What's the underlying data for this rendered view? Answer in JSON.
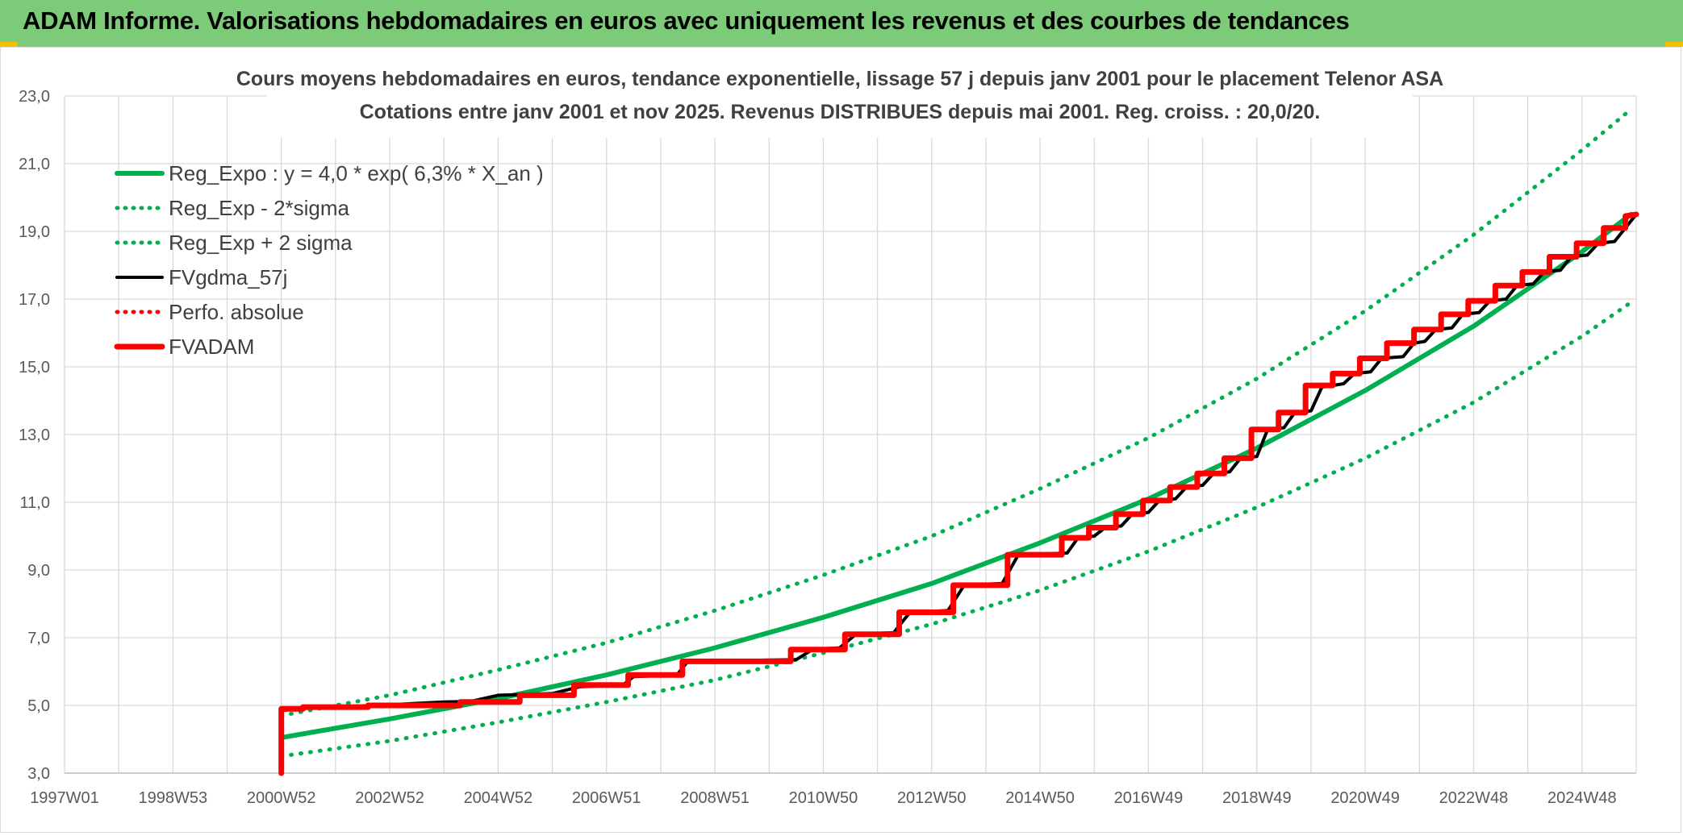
{
  "header": {
    "title": "ADAM Informe. Valorisations hebdomadaires en euros avec uniquement les revenus et des courbes de tendances",
    "background": "#7ccb78"
  },
  "chart_data": {
    "type": "line",
    "title": "Cours moyens hebdomadaires en euros, tendance exponentielle, lissage 57 j depuis janv 2001 pour le placement Telenor ASA",
    "subtitle": "Cotations entre janv 2001 et nov 2025. Revenus DISTRIBUES depuis mai 2001. Reg. croiss. : 20,0/20.",
    "xlabel": "",
    "ylabel": "",
    "xlim": [
      1997.0,
      2026.0
    ],
    "ylim": [
      3.0,
      23.0
    ],
    "grid": true,
    "legend_position": "top-left",
    "x_tick_labels": [
      {
        "x": 1997.0,
        "label": "1997W01"
      },
      {
        "x": 1999.0,
        "label": "1998W53"
      },
      {
        "x": 2001.0,
        "label": "2000W52"
      },
      {
        "x": 2003.0,
        "label": "2002W52"
      },
      {
        "x": 2005.0,
        "label": "2004W52"
      },
      {
        "x": 2007.0,
        "label": "2006W51"
      },
      {
        "x": 2009.0,
        "label": "2008W51"
      },
      {
        "x": 2011.0,
        "label": "2010W50"
      },
      {
        "x": 2013.0,
        "label": "2012W50"
      },
      {
        "x": 2015.0,
        "label": "2014W50"
      },
      {
        "x": 2017.0,
        "label": "2016W49"
      },
      {
        "x": 2019.0,
        "label": "2018W49"
      },
      {
        "x": 2021.0,
        "label": "2020W49"
      },
      {
        "x": 2023.0,
        "label": "2022W48"
      },
      {
        "x": 2025.0,
        "label": "2024W48"
      }
    ],
    "y_tick_labels": [
      "3,0",
      "5,0",
      "7,0",
      "9,0",
      "11,0",
      "13,0",
      "15,0",
      "17,0",
      "19,0",
      "21,0",
      "23,0"
    ],
    "y_ticks": [
      3,
      5,
      7,
      9,
      11,
      13,
      15,
      17,
      19,
      21,
      23
    ],
    "series": [
      {
        "name": "Reg_Expo : y = 4,0 * exp( 6,3% *  X_an )",
        "color": "#00b050",
        "style": "solid",
        "points": [
          [
            2001.0,
            4.05
          ],
          [
            2003.0,
            4.6
          ],
          [
            2005.0,
            5.2
          ],
          [
            2007.0,
            5.9
          ],
          [
            2009.0,
            6.7
          ],
          [
            2011.0,
            7.6
          ],
          [
            2013.0,
            8.6
          ],
          [
            2015.0,
            9.8
          ],
          [
            2017.0,
            11.1
          ],
          [
            2019.0,
            12.6
          ],
          [
            2021.0,
            14.3
          ],
          [
            2023.0,
            16.2
          ],
          [
            2025.0,
            18.4
          ],
          [
            2025.9,
            19.5
          ]
        ]
      },
      {
        "name": "Reg_Exp - 2*sigma",
        "color": "#00b050",
        "style": "dotted",
        "points": [
          [
            2001.0,
            3.5
          ],
          [
            2003.0,
            3.95
          ],
          [
            2005.0,
            4.5
          ],
          [
            2007.0,
            5.1
          ],
          [
            2009.0,
            5.75
          ],
          [
            2011.0,
            6.55
          ],
          [
            2013.0,
            7.4
          ],
          [
            2015.0,
            8.4
          ],
          [
            2017.0,
            9.55
          ],
          [
            2019.0,
            10.85
          ],
          [
            2021.0,
            12.3
          ],
          [
            2023.0,
            13.95
          ],
          [
            2025.0,
            15.9
          ],
          [
            2025.9,
            16.9
          ]
        ]
      },
      {
        "name": "Reg_Exp + 2 sigma",
        "color": "#00b050",
        "style": "dotted",
        "points": [
          [
            2001.0,
            4.7
          ],
          [
            2003.0,
            5.3
          ],
          [
            2005.0,
            6.05
          ],
          [
            2007.0,
            6.85
          ],
          [
            2009.0,
            7.8
          ],
          [
            2011.0,
            8.85
          ],
          [
            2013.0,
            10.0
          ],
          [
            2015.0,
            11.4
          ],
          [
            2017.0,
            12.9
          ],
          [
            2019.0,
            14.65
          ],
          [
            2021.0,
            16.65
          ],
          [
            2023.0,
            18.9
          ],
          [
            2025.0,
            21.4
          ],
          [
            2025.9,
            22.6
          ]
        ]
      },
      {
        "name": "FVgdma_57j",
        "color": "#000000",
        "style": "solid",
        "points": [
          [
            2001.0,
            4.85
          ],
          [
            2001.5,
            4.92
          ],
          [
            2002.5,
            4.98
          ],
          [
            2004.0,
            5.1
          ],
          [
            2004.5,
            5.12
          ],
          [
            2005.0,
            5.3
          ],
          [
            2006.0,
            5.35
          ],
          [
            2006.5,
            5.55
          ],
          [
            2007.3,
            5.6
          ],
          [
            2007.5,
            5.85
          ],
          [
            2008.3,
            5.9
          ],
          [
            2008.5,
            6.3
          ],
          [
            2010.5,
            6.35
          ],
          [
            2010.8,
            6.65
          ],
          [
            2011.3,
            6.7
          ],
          [
            2011.6,
            7.1
          ],
          [
            2012.3,
            7.15
          ],
          [
            2012.6,
            7.75
          ],
          [
            2013.3,
            7.8
          ],
          [
            2013.6,
            8.55
          ],
          [
            2014.3,
            8.6
          ],
          [
            2014.6,
            9.45
          ],
          [
            2015.5,
            9.5
          ],
          [
            2015.7,
            9.95
          ],
          [
            2016.0,
            10.0
          ],
          [
            2016.2,
            10.25
          ],
          [
            2016.5,
            10.3
          ],
          [
            2016.7,
            10.65
          ],
          [
            2017.0,
            10.7
          ],
          [
            2017.2,
            11.05
          ],
          [
            2017.5,
            11.1
          ],
          [
            2017.7,
            11.45
          ],
          [
            2018.0,
            11.5
          ],
          [
            2018.2,
            11.85
          ],
          [
            2018.5,
            11.9
          ],
          [
            2018.7,
            12.3
          ],
          [
            2019.0,
            12.35
          ],
          [
            2019.2,
            13.15
          ],
          [
            2019.5,
            13.2
          ],
          [
            2019.7,
            13.65
          ],
          [
            2020.0,
            13.7
          ],
          [
            2020.2,
            14.4
          ],
          [
            2020.6,
            14.5
          ],
          [
            2020.8,
            14.8
          ],
          [
            2021.1,
            14.85
          ],
          [
            2021.3,
            15.25
          ],
          [
            2021.7,
            15.3
          ],
          [
            2021.9,
            15.7
          ],
          [
            2022.1,
            15.75
          ],
          [
            2022.3,
            16.1
          ],
          [
            2022.6,
            16.15
          ],
          [
            2022.8,
            16.55
          ],
          [
            2023.1,
            16.6
          ],
          [
            2023.3,
            16.95
          ],
          [
            2023.6,
            17.0
          ],
          [
            2023.8,
            17.4
          ],
          [
            2024.1,
            17.45
          ],
          [
            2024.3,
            17.8
          ],
          [
            2024.6,
            17.85
          ],
          [
            2024.8,
            18.25
          ],
          [
            2025.1,
            18.3
          ],
          [
            2025.3,
            18.65
          ],
          [
            2025.6,
            18.7
          ],
          [
            2025.8,
            19.1
          ],
          [
            2026.0,
            19.5
          ]
        ]
      },
      {
        "name": "Perfo. absolue",
        "color": "#ff0000",
        "style": "dotted",
        "points": []
      },
      {
        "name": "FVADAM",
        "color": "#ff0000",
        "style": "solid",
        "points": [
          [
            2001.0,
            3.0
          ],
          [
            2001.0,
            4.9
          ],
          [
            2001.4,
            4.9
          ],
          [
            2001.4,
            4.95
          ],
          [
            2002.6,
            4.95
          ],
          [
            2002.6,
            5.0
          ],
          [
            2004.3,
            5.0
          ],
          [
            2004.3,
            5.1
          ],
          [
            2005.4,
            5.1
          ],
          [
            2005.4,
            5.3
          ],
          [
            2006.4,
            5.3
          ],
          [
            2006.4,
            5.6
          ],
          [
            2007.4,
            5.6
          ],
          [
            2007.4,
            5.9
          ],
          [
            2008.4,
            5.9
          ],
          [
            2008.4,
            6.3
          ],
          [
            2010.4,
            6.3
          ],
          [
            2010.4,
            6.65
          ],
          [
            2011.4,
            6.65
          ],
          [
            2011.4,
            7.1
          ],
          [
            2012.4,
            7.1
          ],
          [
            2012.4,
            7.75
          ],
          [
            2013.4,
            7.75
          ],
          [
            2013.4,
            8.55
          ],
          [
            2014.4,
            8.55
          ],
          [
            2014.4,
            9.45
          ],
          [
            2015.4,
            9.45
          ],
          [
            2015.4,
            9.95
          ],
          [
            2015.9,
            9.95
          ],
          [
            2015.9,
            10.25
          ],
          [
            2016.4,
            10.25
          ],
          [
            2016.4,
            10.65
          ],
          [
            2016.9,
            10.65
          ],
          [
            2016.9,
            11.05
          ],
          [
            2017.4,
            11.05
          ],
          [
            2017.4,
            11.45
          ],
          [
            2017.9,
            11.45
          ],
          [
            2017.9,
            11.85
          ],
          [
            2018.4,
            11.85
          ],
          [
            2018.4,
            12.3
          ],
          [
            2018.9,
            12.3
          ],
          [
            2018.9,
            13.15
          ],
          [
            2019.4,
            13.15
          ],
          [
            2019.4,
            13.65
          ],
          [
            2019.9,
            13.65
          ],
          [
            2019.9,
            14.45
          ],
          [
            2020.4,
            14.45
          ],
          [
            2020.4,
            14.8
          ],
          [
            2020.9,
            14.8
          ],
          [
            2020.9,
            15.25
          ],
          [
            2021.4,
            15.25
          ],
          [
            2021.4,
            15.7
          ],
          [
            2021.9,
            15.7
          ],
          [
            2021.9,
            16.1
          ],
          [
            2022.4,
            16.1
          ],
          [
            2022.4,
            16.55
          ],
          [
            2022.9,
            16.55
          ],
          [
            2022.9,
            16.95
          ],
          [
            2023.4,
            16.95
          ],
          [
            2023.4,
            17.4
          ],
          [
            2023.9,
            17.4
          ],
          [
            2023.9,
            17.8
          ],
          [
            2024.4,
            17.8
          ],
          [
            2024.4,
            18.25
          ],
          [
            2024.9,
            18.25
          ],
          [
            2024.9,
            18.65
          ],
          [
            2025.4,
            18.65
          ],
          [
            2025.4,
            19.1
          ],
          [
            2025.8,
            19.1
          ],
          [
            2025.8,
            19.45
          ],
          [
            2026.0,
            19.5
          ]
        ]
      }
    ]
  }
}
